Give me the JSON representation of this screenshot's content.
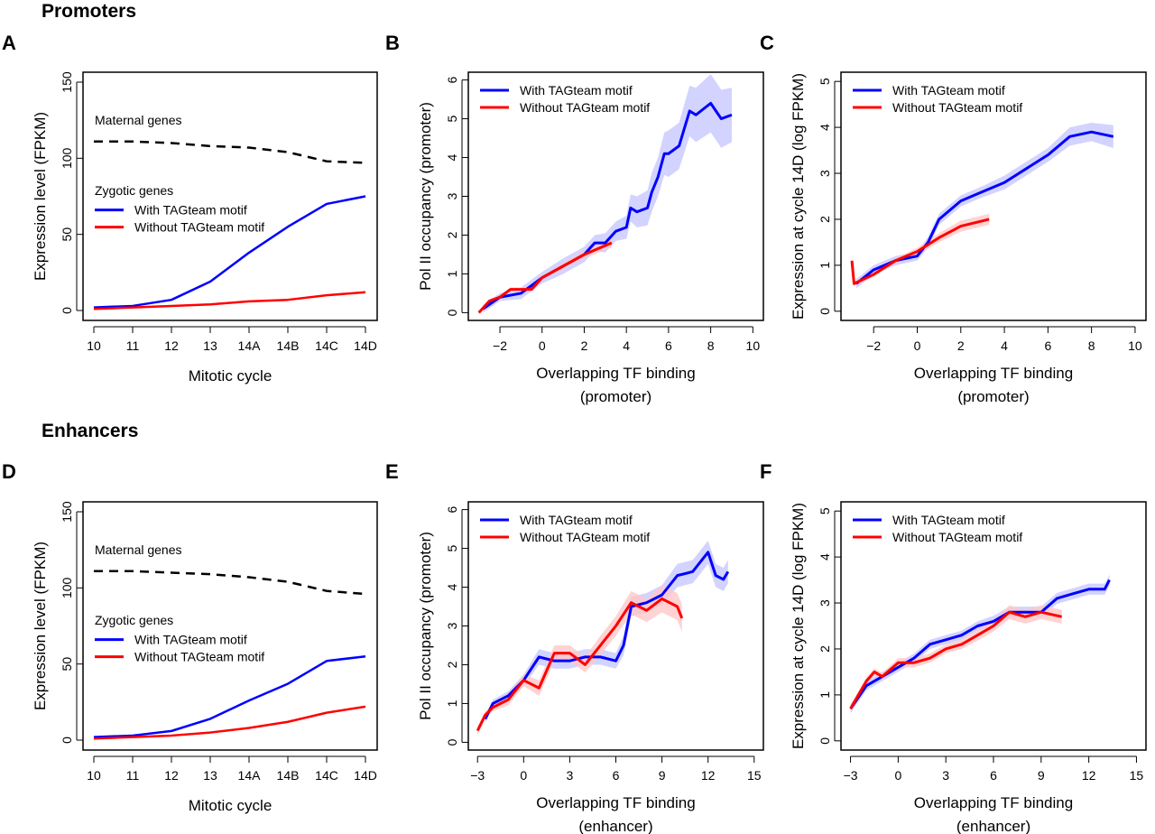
{
  "sections": {
    "top": "Promoters",
    "bottom": "Enhancers"
  },
  "colors": {
    "with": "#0000ff",
    "without": "#ff0000",
    "maternal": "#000000",
    "with_band": "#c8c8ff",
    "without_band": "#ffc8c8"
  },
  "chart_data": [
    {
      "panel": "A",
      "type": "line",
      "xlabel": "Mitotic cycle",
      "ylabel": "Expression level (FPKM)",
      "categories": [
        "10",
        "11",
        "12",
        "13",
        "14A",
        "14B",
        "14C",
        "14D"
      ],
      "ylim": [
        0,
        150
      ],
      "yticks": [
        0,
        50,
        100,
        150
      ],
      "annotations": [
        "Maternal genes",
        "Zygotic genes"
      ],
      "series": [
        {
          "name": "Maternal genes",
          "style": "dashed",
          "color": "#000000",
          "values": [
            111,
            111,
            110,
            108,
            107,
            104,
            98,
            97
          ]
        },
        {
          "name": "With TAGteam motif",
          "color": "#0000ff",
          "values": [
            2,
            3,
            7,
            19,
            38,
            55,
            70,
            75
          ]
        },
        {
          "name": "Without TAGteam motif",
          "color": "#ff0000",
          "values": [
            1,
            2,
            3,
            4,
            6,
            7,
            10,
            12
          ]
        }
      ]
    },
    {
      "panel": "B",
      "type": "line",
      "xlabel": "Overlapping TF binding",
      "xlabel2": "(promoter)",
      "ylabel": "Pol II occupancy (promoter)",
      "xlim": [
        -3.5,
        10.5
      ],
      "xticks": [
        -2,
        0,
        2,
        4,
        6,
        8,
        10
      ],
      "ylim": [
        -0.2,
        6.2
      ],
      "yticks": [
        0,
        1,
        2,
        3,
        4,
        5,
        6
      ],
      "legend": "top-left",
      "series": [
        {
          "name": "With TAGteam motif",
          "color": "#0000ff",
          "x": [
            -2.8,
            -2,
            -1,
            0,
            1,
            2,
            2.5,
            3,
            3.5,
            4,
            4.2,
            4.5,
            5,
            5.2,
            5.5,
            5.8,
            6,
            6.5,
            7,
            7.3,
            8,
            8.5,
            9
          ],
          "y": [
            0.1,
            0.4,
            0.5,
            0.9,
            1.2,
            1.5,
            1.8,
            1.8,
            2.1,
            2.2,
            2.7,
            2.6,
            2.7,
            3.1,
            3.5,
            4.1,
            4.1,
            4.3,
            5.2,
            5.1,
            5.4,
            5.0,
            5.1
          ],
          "ci": [
            0.1,
            0.1,
            0.15,
            0.15,
            0.2,
            0.2,
            0.2,
            0.25,
            0.25,
            0.3,
            0.35,
            0.4,
            0.45,
            0.5,
            0.5,
            0.55,
            0.6,
            0.6,
            0.65,
            0.7,
            0.75,
            0.75,
            0.7
          ]
        },
        {
          "name": "Without TAGteam motif",
          "color": "#ff0000",
          "x": [
            -3,
            -2.5,
            -2,
            -1.5,
            -0.5,
            0,
            1,
            2,
            3.3
          ],
          "y": [
            0,
            0.3,
            0.4,
            0.6,
            0.6,
            0.9,
            1.2,
            1.5,
            1.8
          ],
          "ci": [
            0.05,
            0.05,
            0.05,
            0.05,
            0.05,
            0.05,
            0.08,
            0.1,
            0.12
          ]
        }
      ]
    },
    {
      "panel": "C",
      "type": "line",
      "xlabel": "Overlapping TF binding",
      "xlabel2": "(promoter)",
      "ylabel": "Expression at cycle 14D (log FPKM)",
      "xlim": [
        -3.5,
        10.5
      ],
      "xticks": [
        -2,
        0,
        2,
        4,
        6,
        8,
        10
      ],
      "ylim": [
        -0.2,
        5.2
      ],
      "yticks": [
        0,
        1,
        2,
        3,
        4,
        5
      ],
      "legend": "top-left",
      "series": [
        {
          "name": "With TAGteam motif",
          "color": "#0000ff",
          "x": [
            -2.8,
            -2,
            -1,
            0,
            0.5,
            1,
            2,
            3,
            4,
            5,
            6,
            7,
            8,
            9
          ],
          "y": [
            0.6,
            0.9,
            1.1,
            1.2,
            1.5,
            2.0,
            2.4,
            2.6,
            2.8,
            3.1,
            3.4,
            3.8,
            3.9,
            3.8
          ],
          "ci": [
            0.1,
            0.1,
            0.1,
            0.1,
            0.12,
            0.12,
            0.12,
            0.12,
            0.15,
            0.15,
            0.15,
            0.2,
            0.2,
            0.25
          ]
        },
        {
          "name": "Without TAGteam motif",
          "color": "#ff0000",
          "x": [
            -3,
            -2.9,
            -2,
            -1,
            0,
            1,
            2,
            3.3
          ],
          "y": [
            1.1,
            0.6,
            0.8,
            1.1,
            1.3,
            1.6,
            1.85,
            2.0
          ],
          "ci": [
            0.05,
            0.05,
            0.05,
            0.05,
            0.08,
            0.1,
            0.12,
            0.12
          ]
        }
      ]
    },
    {
      "panel": "D",
      "type": "line",
      "xlabel": "Mitotic cycle",
      "ylabel": "Expression level (FPKM)",
      "categories": [
        "10",
        "11",
        "12",
        "13",
        "14A",
        "14B",
        "14C",
        "14D"
      ],
      "ylim": [
        0,
        150
      ],
      "yticks": [
        0,
        50,
        100,
        150
      ],
      "annotations": [
        "Maternal genes",
        "Zygotic genes"
      ],
      "series": [
        {
          "name": "Maternal genes",
          "style": "dashed",
          "color": "#000000",
          "values": [
            111,
            111,
            110,
            109,
            107,
            104,
            98,
            96
          ]
        },
        {
          "name": "With TAGteam motif",
          "color": "#0000ff",
          "values": [
            2,
            3,
            6,
            14,
            26,
            37,
            52,
            55
          ]
        },
        {
          "name": "Without TAGteam motif",
          "color": "#ff0000",
          "values": [
            1,
            2,
            3,
            5,
            8,
            12,
            18,
            22
          ]
        }
      ]
    },
    {
      "panel": "E",
      "type": "line",
      "xlabel": "Overlapping TF binding",
      "xlabel2": "(enhancer)",
      "ylabel": "Pol II occupancy (promoter)",
      "xlim": [
        -3.6,
        15.6
      ],
      "xticks": [
        -3,
        0,
        3,
        6,
        9,
        12,
        15
      ],
      "ylim": [
        -0.2,
        6.2
      ],
      "yticks": [
        0,
        1,
        2,
        3,
        4,
        5,
        6
      ],
      "legend": "top-left",
      "series": [
        {
          "name": "With TAGteam motif",
          "color": "#0000ff",
          "x": [
            -2.5,
            -2,
            -1,
            0,
            1,
            2,
            3,
            4,
            5,
            6,
            6.5,
            7,
            8,
            9,
            10,
            11,
            12,
            12.5,
            13,
            13.3
          ],
          "y": [
            0.6,
            1.0,
            1.2,
            1.6,
            2.2,
            2.1,
            2.1,
            2.2,
            2.2,
            2.1,
            2.5,
            3.5,
            3.6,
            3.8,
            4.3,
            4.4,
            4.9,
            4.3,
            4.2,
            4.4
          ],
          "ci": [
            0.1,
            0.1,
            0.12,
            0.15,
            0.2,
            0.2,
            0.2,
            0.2,
            0.2,
            0.2,
            0.25,
            0.25,
            0.25,
            0.25,
            0.3,
            0.3,
            0.3,
            0.3,
            0.3,
            0.3
          ]
        },
        {
          "name": "Without TAGteam motif",
          "color": "#ff0000",
          "x": [
            -3,
            -2.5,
            -2,
            -1,
            0,
            1,
            2,
            3,
            4,
            5,
            6,
            7,
            8,
            9,
            10,
            10.3
          ],
          "y": [
            0.3,
            0.7,
            0.9,
            1.1,
            1.6,
            1.4,
            2.3,
            2.3,
            2.0,
            2.5,
            3.0,
            3.6,
            3.4,
            3.7,
            3.5,
            3.2
          ],
          "ci": [
            0.1,
            0.1,
            0.1,
            0.15,
            0.15,
            0.2,
            0.2,
            0.2,
            0.2,
            0.25,
            0.25,
            0.3,
            0.3,
            0.35,
            0.35,
            0.35
          ]
        }
      ]
    },
    {
      "panel": "F",
      "type": "line",
      "xlabel": "Overlapping TF binding",
      "xlabel2": "(enhancer)",
      "ylabel": "Expression at cycle 14D (log FPKM)",
      "xlim": [
        -3.6,
        15.6
      ],
      "xticks": [
        -3,
        0,
        3,
        6,
        9,
        12,
        15
      ],
      "ylim": [
        -0.2,
        5.2
      ],
      "yticks": [
        0,
        1,
        2,
        3,
        4,
        5
      ],
      "legend": "top-left",
      "series": [
        {
          "name": "With TAGteam motif",
          "color": "#0000ff",
          "x": [
            -3,
            -2,
            -1,
            0,
            1,
            2,
            3,
            4,
            5,
            6,
            7,
            8,
            9,
            10,
            11,
            12,
            13,
            13.3
          ],
          "y": [
            0.7,
            1.2,
            1.4,
            1.6,
            1.8,
            2.1,
            2.2,
            2.3,
            2.5,
            2.6,
            2.8,
            2.8,
            2.8,
            3.1,
            3.2,
            3.3,
            3.3,
            3.5
          ],
          "ci": [
            0.1,
            0.1,
            0.1,
            0.1,
            0.1,
            0.1,
            0.1,
            0.1,
            0.1,
            0.12,
            0.12,
            0.12,
            0.12,
            0.12,
            0.12,
            0.12,
            0.12,
            0.12
          ]
        },
        {
          "name": "Without TAGteam motif",
          "color": "#ff0000",
          "x": [
            -3,
            -2.5,
            -2,
            -1.5,
            -1,
            0,
            1,
            2,
            3,
            4,
            5,
            6,
            7,
            8,
            9,
            10.3
          ],
          "y": [
            0.7,
            1.0,
            1.3,
            1.5,
            1.4,
            1.7,
            1.7,
            1.8,
            2.0,
            2.1,
            2.3,
            2.5,
            2.8,
            2.7,
            2.8,
            2.7
          ],
          "ci": [
            0.08,
            0.08,
            0.08,
            0.08,
            0.08,
            0.1,
            0.1,
            0.1,
            0.1,
            0.1,
            0.12,
            0.12,
            0.15,
            0.15,
            0.15,
            0.15
          ]
        }
      ]
    }
  ]
}
